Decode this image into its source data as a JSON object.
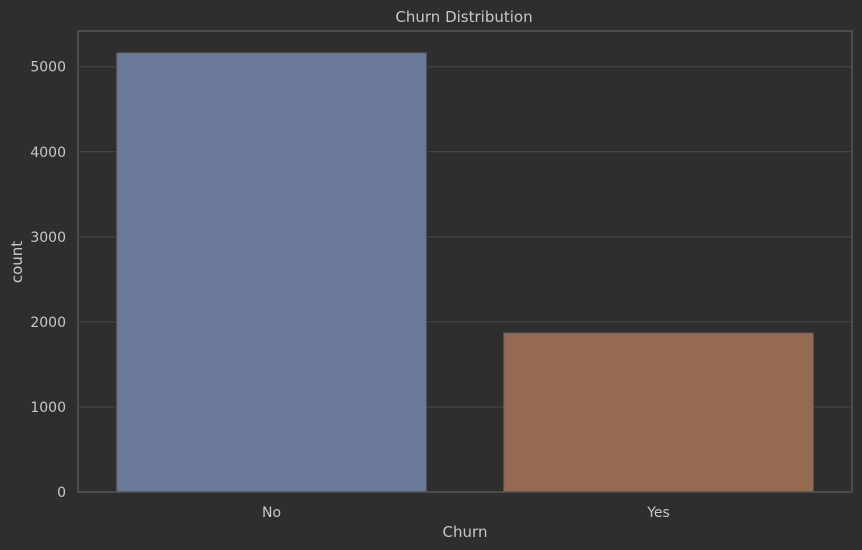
{
  "chart_data": {
    "type": "bar",
    "title": "Churn Distribution",
    "xlabel": "Churn",
    "ylabel": "count",
    "categories": [
      "No",
      "Yes"
    ],
    "values": [
      5163,
      1869
    ],
    "ylim": [
      0,
      5420
    ],
    "yticks": [
      0,
      1000,
      2000,
      3000,
      4000,
      5000
    ],
    "grid": true,
    "colors": {
      "background": "#2e2e2e",
      "grid": "#4a4a4a",
      "axes_edge": "#555555",
      "bars": [
        "#6a7a98",
        "#946a53"
      ],
      "bar_edge": "#5c5c5c",
      "text": "#c8c8c8"
    }
  }
}
